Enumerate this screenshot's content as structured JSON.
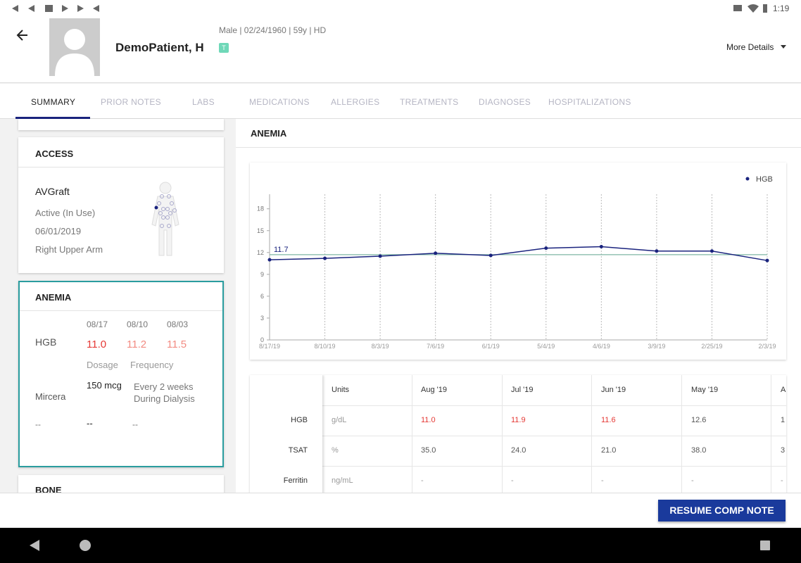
{
  "status_bar": {
    "time": "1:19"
  },
  "header": {
    "patient_name": "DemoPatient, H",
    "demographics": "Male | 02/24/1960 | 59y  | HD",
    "badge": "T",
    "more_details": "More Details"
  },
  "tabs": [
    "SUMMARY",
    "PRIOR NOTES",
    "LABS",
    "MEDICATIONS",
    "ALLERGIES",
    "TREATMENTS",
    "DIAGNOSES",
    "HOSPITALIZATIONS"
  ],
  "access_card": {
    "title": "ACCESS",
    "access_type": "AVGraft",
    "status": "Active (In Use)",
    "date": "06/01/2019",
    "location": "Right Upper Arm"
  },
  "anemia_card": {
    "title": "ANEMIA",
    "dates": [
      "08/17",
      "08/10",
      "08/03"
    ],
    "hgb_label": "HGB",
    "hgb_values": [
      "11.0",
      "11.2",
      "11.5"
    ],
    "dosage_label": "Dosage",
    "frequency_label": "Frequency",
    "medication": "Mircera",
    "dosage": "150 mcg",
    "frequency": "Every 2 weeks During Dialysis",
    "empty_row": [
      "--",
      "--",
      "--"
    ]
  },
  "next_card": {
    "title": "BONE"
  },
  "section_title": "ANEMIA",
  "chart_data": {
    "type": "line",
    "categories": [
      "8/17/19",
      "8/10/19",
      "8/3/19",
      "7/6/19",
      "6/1/19",
      "5/4/19",
      "4/6/19",
      "3/9/19",
      "2/25/19",
      "2/3/19"
    ],
    "series": [
      {
        "name": "HGB",
        "color": "#1a237e",
        "values": [
          11.0,
          11.2,
          11.5,
          11.9,
          11.6,
          12.6,
          12.8,
          12.2,
          12.2,
          10.9
        ]
      }
    ],
    "reference_line": 11.7,
    "reference_color": "#7fb7a4",
    "ylim": [
      0,
      20
    ],
    "yticks": [
      0,
      3,
      6,
      9,
      12,
      15,
      18
    ],
    "grid": "x",
    "legend": "top-right"
  },
  "table": {
    "columns": [
      "Units",
      "Aug '19",
      "Jul '19",
      "Jun '19",
      "May '19",
      "A"
    ],
    "rows": [
      {
        "label": "HGB",
        "cells": [
          "g/dL",
          "11.0",
          "11.9",
          "11.6",
          "12.6",
          "1"
        ]
      },
      {
        "label": "TSAT",
        "cells": [
          "%",
          "35.0",
          "24.0",
          "21.0",
          "38.0",
          "3"
        ]
      },
      {
        "label": "Ferritin",
        "cells": [
          "ng/mL",
          "-",
          "-",
          "-",
          "-",
          "-"
        ]
      }
    ]
  },
  "footer": {
    "button": "RESUME COMP NOTE"
  }
}
